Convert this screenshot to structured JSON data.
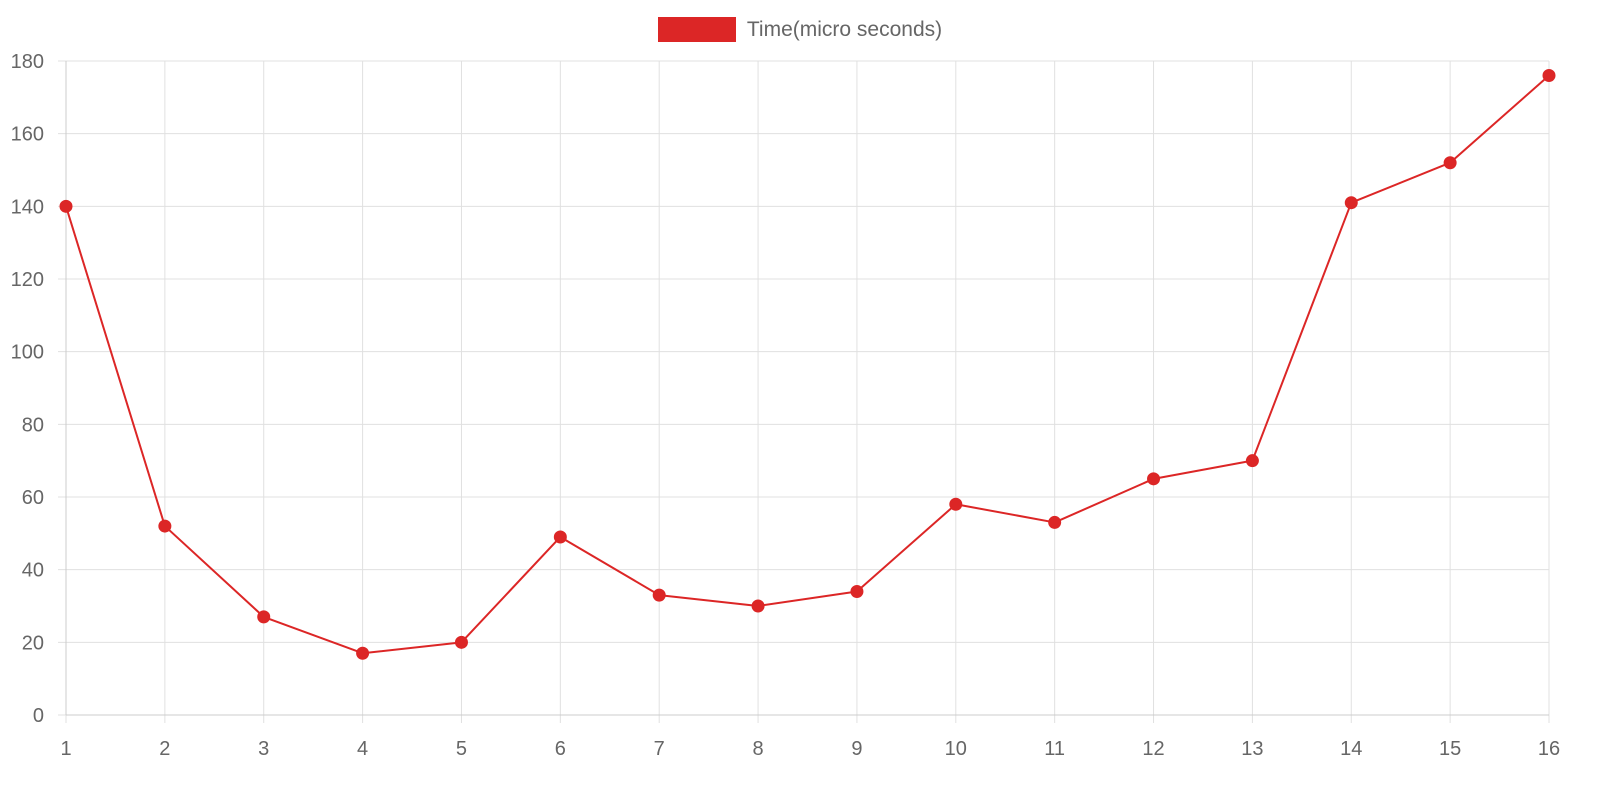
{
  "chart_data": {
    "type": "line",
    "legend_position": "top",
    "grid": true,
    "x": [
      "1",
      "2",
      "3",
      "4",
      "5",
      "6",
      "7",
      "8",
      "9",
      "10",
      "11",
      "12",
      "13",
      "14",
      "15",
      "16"
    ],
    "ylim": [
      0,
      180
    ],
    "y_ticks": [
      "0",
      "20",
      "40",
      "60",
      "80",
      "100",
      "120",
      "140",
      "160",
      "180"
    ],
    "series": [
      {
        "name": "Time(micro seconds)",
        "color": "#dc2626",
        "values": [
          140,
          52,
          27,
          17,
          20,
          49,
          33,
          30,
          34,
          58,
          53,
          65,
          70,
          141,
          152,
          176
        ]
      }
    ]
  }
}
